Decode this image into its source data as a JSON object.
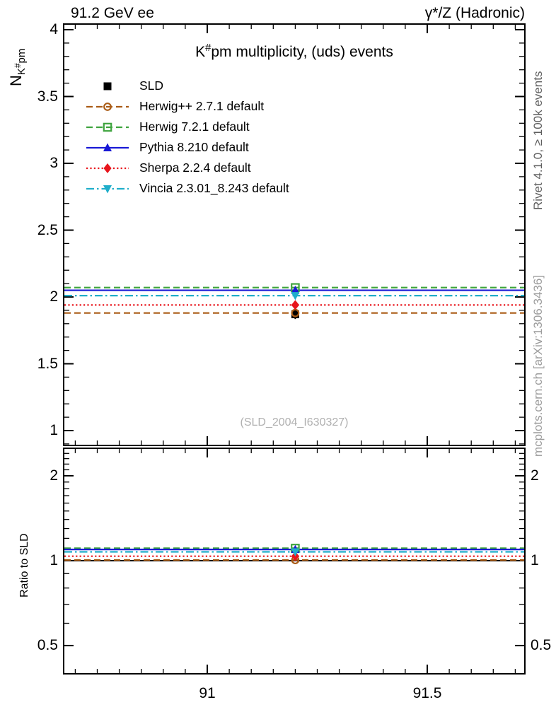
{
  "header": {
    "left": "91.2 GeV ee",
    "right": "γ*/Z (Hadronic)"
  },
  "title": {
    "base": "K",
    "sup": "#",
    "rest": "pm multiplicity, (uds) events"
  },
  "axis_labels": {
    "main_y": {
      "base": "N",
      "sub_main": "K",
      "sub_sup": "#",
      "sub_rest": "pm"
    },
    "ratio_y": "Ratio to SLD"
  },
  "side_notes": {
    "top_right": "Rivet 4.1.0, ≥ 100k events",
    "bottom_right": "mcplots.cern.ch [arXiv:1306.3436]"
  },
  "watermark": {
    "text": "(SLD_2004_I630327)"
  },
  "colors": {
    "frame": "#000000",
    "rivet_note": "#5f5f5f",
    "mcplots_note": "#9c9c9c",
    "watermark": "#b0b0b0",
    "reference_line": "#000000"
  },
  "chart_data": {
    "type": "line",
    "title": "K#pm multiplicity, (uds) events",
    "x_axis": {
      "min": 90.674,
      "max": 91.722,
      "major_ticks": [
        91,
        91.5
      ],
      "major_labels": [
        "91",
        "91.5"
      ],
      "minor_step": 0.05
    },
    "main_panel": {
      "ylabel": "N_K#pm",
      "scale": "linear",
      "ymin": 0.89,
      "ymax": 4.04,
      "major_ticks": [
        1,
        1.5,
        2,
        2.5,
        3,
        3.5,
        4
      ],
      "major_labels": [
        "1",
        "1.5",
        "2",
        "2.5",
        "3",
        "3.5",
        "4"
      ],
      "minor_step": 0.1
    },
    "ratio_panel": {
      "ylabel": "Ratio to SLD",
      "scale": "log",
      "ymin": 0.39,
      "ymax": 2.5,
      "major_ticks": [
        0.5,
        1,
        2
      ],
      "major_labels": [
        "0.5",
        "1",
        "2"
      ],
      "reference_ratio": 1.0
    },
    "x_point": 91.2,
    "series": [
      {
        "name": "SLD",
        "kind": "data",
        "color": "#000000",
        "line": "none",
        "marker": "square-filled",
        "value": 1.87,
        "err": 0.035,
        "ratio": 1.0
      },
      {
        "name": "Herwig++ 2.7.1 default",
        "kind": "mc",
        "color": "#aa5c16",
        "line": "dashed",
        "marker": "circle-open",
        "value": 1.88,
        "ratio": 1.005
      },
      {
        "name": "Herwig 7.2.1 default",
        "kind": "mc",
        "color": "#3fa43f",
        "line": "dashed",
        "marker": "square-open",
        "value": 2.07,
        "ratio": 1.107
      },
      {
        "name": "Pythia 8.210 default",
        "kind": "mc",
        "color": "#1919d6",
        "line": "solid",
        "marker": "triangle-up-filled",
        "value": 2.05,
        "ratio": 1.096
      },
      {
        "name": "Sherpa 2.2.4 default",
        "kind": "mc",
        "color": "#e8151c",
        "line": "dotted",
        "marker": "diamond-filled",
        "value": 1.94,
        "ratio": 1.037
      },
      {
        "name": "Vincia 2.3.01_8.243 default",
        "kind": "mc",
        "color": "#20aeca",
        "line": "dashdot",
        "marker": "triangle-down-filled",
        "value": 2.01,
        "ratio": 1.075
      }
    ]
  }
}
